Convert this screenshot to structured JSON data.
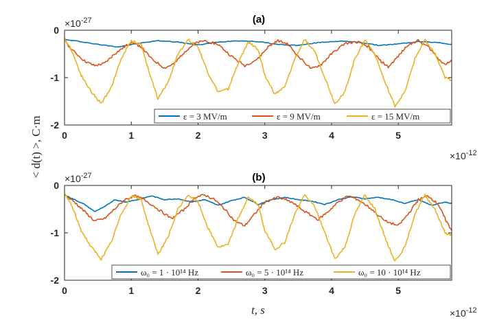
{
  "colors": {
    "blue": "#0072BD",
    "orange": "#D95319",
    "yellow": "#EDB120"
  },
  "shared": {
    "ylabel": "< d(t) >, C·m",
    "y_multiplier": "×10",
    "y_exponent": "-27",
    "x_multiplier": "×10",
    "x_exponent": "-12"
  },
  "chart_data": [
    {
      "type": "line",
      "title": "(a)",
      "xlabel": "",
      "ylabel": "< d(t) >, C·m",
      "xlim": [
        0,
        5.8
      ],
      "ylim": [
        -2,
        0
      ],
      "x_ticks": [
        "0",
        "1",
        "2",
        "3",
        "4",
        "5"
      ],
      "y_ticks": [
        "0",
        "-1",
        "-2"
      ],
      "legend_location": "bottom-right",
      "series": [
        {
          "name": "ε = 3 MV/m",
          "color": "blue",
          "x": [
            0,
            0.2,
            0.5,
            0.8,
            1.1,
            1.4,
            1.7,
            2.0,
            2.3,
            2.6,
            2.9,
            3.2,
            3.5,
            3.8,
            4.1,
            4.4,
            4.7,
            5.0,
            5.3,
            5.6,
            5.8
          ],
          "y": [
            -0.2,
            -0.23,
            -0.3,
            -0.35,
            -0.28,
            -0.22,
            -0.25,
            -0.31,
            -0.25,
            -0.22,
            -0.24,
            -0.3,
            -0.32,
            -0.26,
            -0.23,
            -0.25,
            -0.32,
            -0.29,
            -0.24,
            -0.26,
            -0.3
          ]
        },
        {
          "name": "ε = 9 MV/m",
          "color": "orange",
          "x": [
            0,
            0.1,
            0.3,
            0.45,
            0.6,
            0.75,
            0.9,
            1.0,
            1.15,
            1.3,
            1.5,
            1.65,
            1.8,
            1.95,
            2.1,
            2.3,
            2.5,
            2.7,
            2.9,
            3.05,
            3.2,
            3.35,
            3.5,
            3.7,
            3.85,
            4.0,
            4.2,
            4.4,
            4.55,
            4.7,
            4.85,
            5.0,
            5.15,
            5.3,
            5.45,
            5.6,
            5.7,
            5.8
          ],
          "y": [
            -0.2,
            -0.4,
            -0.65,
            -0.75,
            -0.7,
            -0.5,
            -0.35,
            -0.25,
            -0.35,
            -0.6,
            -0.8,
            -0.7,
            -0.45,
            -0.28,
            -0.22,
            -0.3,
            -0.55,
            -0.75,
            -0.6,
            -0.35,
            -0.22,
            -0.3,
            -0.55,
            -0.82,
            -0.72,
            -0.5,
            -0.28,
            -0.25,
            -0.35,
            -0.6,
            -0.78,
            -0.55,
            -0.3,
            -0.22,
            -0.35,
            -0.6,
            -0.72,
            -0.65
          ]
        },
        {
          "name": "ε = 15 MV/m",
          "color": "yellow",
          "x": [
            0,
            0.1,
            0.25,
            0.4,
            0.55,
            0.7,
            0.85,
            1.0,
            1.15,
            1.25,
            1.4,
            1.55,
            1.7,
            1.85,
            2.0,
            2.15,
            2.3,
            2.45,
            2.6,
            2.75,
            2.9,
            3.0,
            3.15,
            3.3,
            3.45,
            3.6,
            3.75,
            3.9,
            4.05,
            4.2,
            4.35,
            4.5,
            4.65,
            4.8,
            4.95,
            5.1,
            5.25,
            5.4,
            5.55,
            5.7,
            5.8
          ],
          "y": [
            -0.18,
            -0.4,
            -0.95,
            -1.3,
            -1.55,
            -1.2,
            -0.6,
            -0.22,
            -0.3,
            -0.8,
            -1.45,
            -1.1,
            -0.5,
            -0.2,
            -0.35,
            -0.9,
            -1.3,
            -1.25,
            -0.7,
            -0.25,
            -0.4,
            -0.95,
            -1.35,
            -1.2,
            -0.6,
            -0.2,
            -0.45,
            -1.0,
            -1.55,
            -1.3,
            -0.6,
            -0.2,
            -0.5,
            -1.1,
            -1.6,
            -1.3,
            -0.6,
            -0.2,
            -0.5,
            -1.0,
            -1.05
          ]
        }
      ]
    },
    {
      "type": "line",
      "title": "(b)",
      "xlabel": "t, s",
      "ylabel": "< d(t) >, C·m",
      "xlim": [
        0,
        5.8
      ],
      "ylim": [
        -2,
        0
      ],
      "x_ticks": [
        "0",
        "1",
        "2",
        "3",
        "4",
        "5"
      ],
      "y_ticks": [
        "0",
        "-1",
        "-2"
      ],
      "legend_location": "bottom-right",
      "series": [
        {
          "name": "ω₀ = 1 · 10¹⁴ Hz",
          "color": "blue",
          "x": [
            0,
            0.15,
            0.3,
            0.45,
            0.6,
            0.75,
            0.9,
            1.1,
            1.3,
            1.5,
            1.7,
            1.9,
            2.1,
            2.3,
            2.5,
            2.7,
            2.9,
            3.1,
            3.3,
            3.5,
            3.7,
            3.9,
            4.1,
            4.3,
            4.5,
            4.7,
            4.9,
            5.1,
            5.3,
            5.5,
            5.7,
            5.8
          ],
          "y": [
            -0.2,
            -0.3,
            -0.4,
            -0.55,
            -0.45,
            -0.3,
            -0.35,
            -0.3,
            -0.22,
            -0.3,
            -0.28,
            -0.35,
            -0.3,
            -0.42,
            -0.32,
            -0.25,
            -0.4,
            -0.3,
            -0.25,
            -0.3,
            -0.33,
            -0.4,
            -0.3,
            -0.24,
            -0.28,
            -0.25,
            -0.3,
            -0.38,
            -0.3,
            -0.42,
            -0.35,
            -0.38
          ]
        },
        {
          "name": "ω₀ = 5 · 10¹⁴ Hz",
          "color": "orange",
          "x": [
            0,
            0.15,
            0.3,
            0.45,
            0.6,
            0.75,
            0.9,
            1.05,
            1.2,
            1.4,
            1.6,
            1.8,
            1.95,
            2.1,
            2.25,
            2.4,
            2.55,
            2.7,
            2.85,
            3.0,
            3.2,
            3.4,
            3.6,
            3.8,
            3.95,
            4.1,
            4.25,
            4.4,
            4.6,
            4.8,
            5.0,
            5.15,
            5.3,
            5.45,
            5.6,
            5.7,
            5.8
          ],
          "y": [
            -0.2,
            -0.35,
            -0.55,
            -0.75,
            -0.7,
            -0.5,
            -0.3,
            -0.22,
            -0.3,
            -0.5,
            -0.7,
            -0.5,
            -0.25,
            -0.2,
            -0.3,
            -0.5,
            -0.75,
            -0.85,
            -0.6,
            -0.35,
            -0.25,
            -0.35,
            -0.55,
            -0.72,
            -0.55,
            -0.35,
            -0.22,
            -0.3,
            -0.5,
            -0.75,
            -0.85,
            -0.6,
            -0.3,
            -0.22,
            -0.4,
            -0.7,
            -0.95
          ]
        },
        {
          "name": "ω₀ = 10 · 10¹⁴ Hz",
          "color": "yellow",
          "x": [
            0,
            0.1,
            0.25,
            0.4,
            0.55,
            0.7,
            0.85,
            1.0,
            1.15,
            1.25,
            1.4,
            1.55,
            1.7,
            1.85,
            2.0,
            2.15,
            2.3,
            2.45,
            2.6,
            2.75,
            2.9,
            3.0,
            3.15,
            3.3,
            3.45,
            3.6,
            3.75,
            3.9,
            4.05,
            4.2,
            4.35,
            4.5,
            4.65,
            4.8,
            4.95,
            5.1,
            5.25,
            5.4,
            5.55,
            5.7,
            5.8
          ],
          "y": [
            -0.18,
            -0.4,
            -0.95,
            -1.3,
            -1.55,
            -1.2,
            -0.6,
            -0.22,
            -0.3,
            -0.8,
            -1.45,
            -1.1,
            -0.5,
            -0.2,
            -0.35,
            -0.9,
            -1.3,
            -1.25,
            -0.7,
            -0.25,
            -0.4,
            -0.95,
            -1.35,
            -1.2,
            -0.6,
            -0.2,
            -0.45,
            -1.0,
            -1.55,
            -1.3,
            -0.6,
            -0.2,
            -0.5,
            -1.1,
            -1.6,
            -1.3,
            -0.6,
            -0.2,
            -0.5,
            -1.0,
            -1.05
          ]
        }
      ]
    }
  ]
}
